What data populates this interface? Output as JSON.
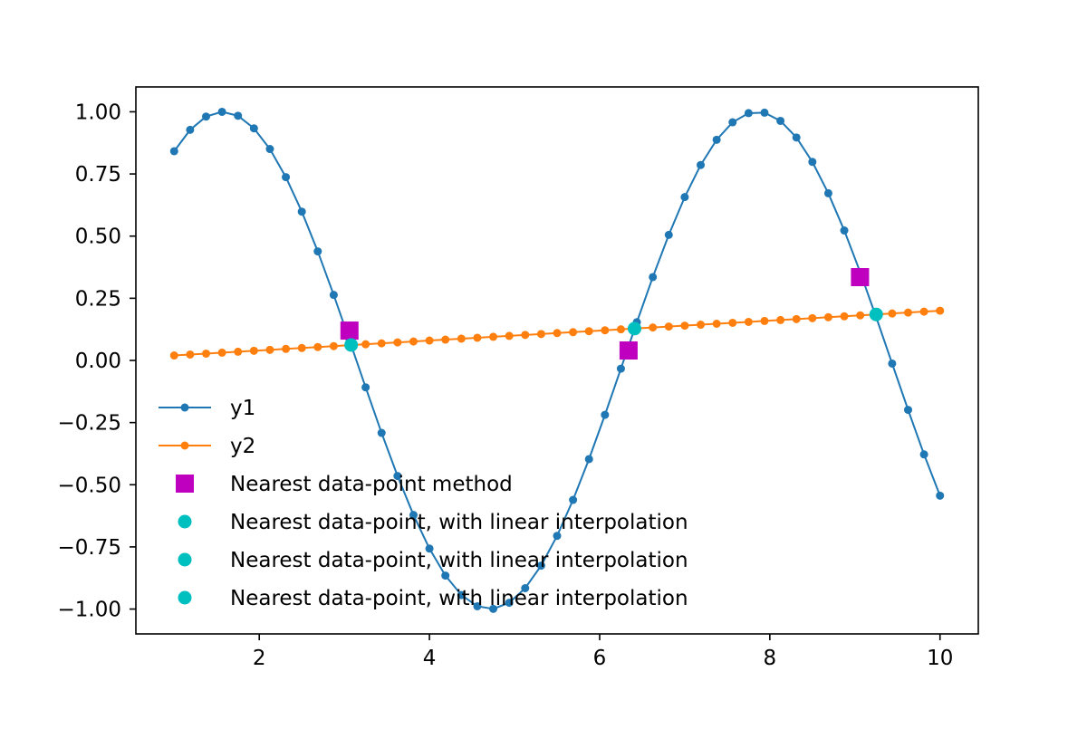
{
  "chart_data": {
    "type": "line",
    "title": "",
    "xlabel": "",
    "ylabel": "",
    "xlim": [
      0.55,
      10.45
    ],
    "ylim": [
      -1.1,
      1.1
    ],
    "grid": false,
    "legend_position": "lower-left",
    "x_ticks": [
      2,
      4,
      6,
      8,
      10
    ],
    "x_tick_labels": [
      "2",
      "4",
      "6",
      "8",
      "10"
    ],
    "y_ticks": [
      1.0,
      0.75,
      0.5,
      0.25,
      0.0,
      -0.25,
      -0.5,
      -0.75,
      -1.0
    ],
    "y_tick_labels": [
      "1.00",
      "0.75",
      "0.50",
      "0.25",
      "0.00",
      "−0.25",
      "−0.50",
      "−0.75",
      "−1.00"
    ],
    "x_points": {
      "start": 1,
      "end": 10,
      "count": 49
    },
    "series": [
      {
        "name": "y1",
        "kind": "line-marker",
        "formula": "sin(x)",
        "color": "#1f77b4"
      },
      {
        "name": "y2",
        "kind": "line-marker",
        "formula": "0.02*x",
        "color": "#ff7f0e"
      }
    ],
    "intersection_markers": [
      {
        "name": "Nearest data-point method",
        "marker": "square",
        "color": "#bf00bf",
        "points": [
          [
            3.06,
            0.12
          ],
          [
            6.34,
            0.04
          ],
          [
            9.06,
            0.335
          ]
        ]
      },
      {
        "name": "Nearest data-point, with linear interpolation",
        "marker": "circle",
        "color": "#00bfbf",
        "points": [
          [
            3.08,
            0.062
          ]
        ]
      },
      {
        "name": "Nearest data-point, with linear interpolation",
        "marker": "circle",
        "color": "#00bfbf",
        "points": [
          [
            6.41,
            0.128
          ]
        ]
      },
      {
        "name": "Nearest data-point, with linear interpolation",
        "marker": "circle",
        "color": "#00bfbf",
        "points": [
          [
            9.25,
            0.185
          ]
        ]
      }
    ]
  }
}
